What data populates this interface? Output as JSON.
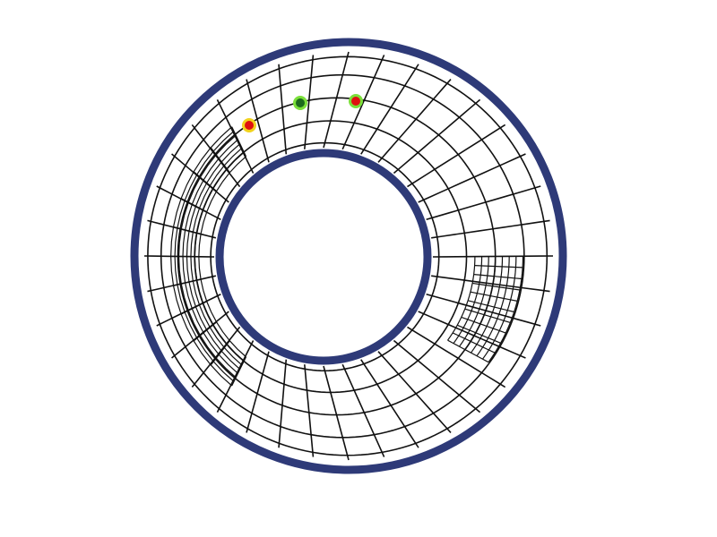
{
  "colors": {
    "frame": "#2e3a78",
    "net": "#111111",
    "background": "#ffffff",
    "marker_red": "#e01010",
    "marker_green": "#7be03a",
    "marker_yellow": "#f2d21c"
  }
}
